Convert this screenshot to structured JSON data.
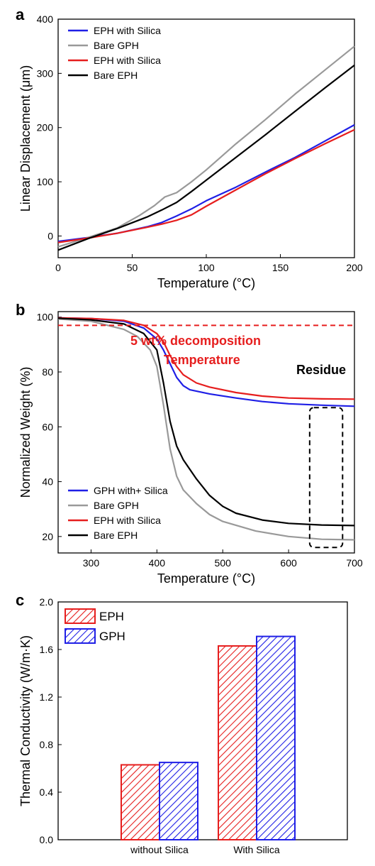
{
  "chart_data": [
    {
      "panel_label": "a",
      "type": "line",
      "xlabel": "Temperature (°C)",
      "ylabel": "Linear Displacement (μm)",
      "xlim": [
        0,
        200
      ],
      "ylim": [
        -40,
        400
      ],
      "xticks": [
        0,
        50,
        100,
        150,
        200
      ],
      "yticks": [
        0,
        100,
        200,
        300,
        400
      ],
      "legend_position": "top-left",
      "series": [
        {
          "name": "EPH with Silica",
          "color": "#1f1fe6",
          "points": [
            [
              0,
              -10
            ],
            [
              20,
              -3
            ],
            [
              40,
              5
            ],
            [
              60,
              17
            ],
            [
              70,
              25
            ],
            [
              80,
              37
            ],
            [
              90,
              50
            ],
            [
              100,
              65
            ],
            [
              120,
              90
            ],
            [
              140,
              118
            ],
            [
              160,
              145
            ],
            [
              180,
              175
            ],
            [
              200,
              205
            ]
          ]
        },
        {
          "name": "Bare GPH",
          "color": "#999999",
          "points": [
            [
              0,
              -20
            ],
            [
              20,
              -3
            ],
            [
              40,
              15
            ],
            [
              55,
              38
            ],
            [
              65,
              56
            ],
            [
              72,
              72
            ],
            [
              80,
              80
            ],
            [
              90,
              100
            ],
            [
              100,
              122
            ],
            [
              120,
              170
            ],
            [
              140,
              215
            ],
            [
              160,
              262
            ],
            [
              180,
              306
            ],
            [
              200,
              350
            ]
          ]
        },
        {
          "name": "EPH with Silica",
          "color": "#e61e1e",
          "points": [
            [
              0,
              -12
            ],
            [
              20,
              -4
            ],
            [
              40,
              5
            ],
            [
              60,
              16
            ],
            [
              70,
              22
            ],
            [
              80,
              29
            ],
            [
              90,
              39
            ],
            [
              100,
              55
            ],
            [
              120,
              85
            ],
            [
              140,
              115
            ],
            [
              160,
              143
            ],
            [
              180,
              170
            ],
            [
              200,
              196
            ]
          ]
        },
        {
          "name": "Bare EPH",
          "color": "#000000",
          "points": [
            [
              0,
              -26
            ],
            [
              20,
              -5
            ],
            [
              40,
              14
            ],
            [
              60,
              35
            ],
            [
              70,
              48
            ],
            [
              80,
              62
            ],
            [
              90,
              82
            ],
            [
              100,
              103
            ],
            [
              120,
              145
            ],
            [
              140,
              187
            ],
            [
              160,
              230
            ],
            [
              180,
              273
            ],
            [
              200,
              315
            ]
          ]
        }
      ]
    },
    {
      "panel_label": "b",
      "type": "line",
      "xlabel": "Temperature (°C)",
      "ylabel": "Normalized Weight (%)",
      "xlim": [
        250,
        700
      ],
      "ylim": [
        14,
        102
      ],
      "xticks": [
        300,
        400,
        500,
        600,
        700
      ],
      "yticks": [
        20,
        40,
        60,
        80,
        100
      ],
      "legend_position": "bottom-left",
      "annotations": [
        {
          "text": "5 wt% decomposition",
          "color": "#e61e1e"
        },
        {
          "text": "Temperature",
          "color": "#e61e1e"
        },
        {
          "text": "Residue",
          "color": "#000000"
        }
      ],
      "reference_line": {
        "y": 97,
        "color": "#e61e1e",
        "style": "dashed"
      },
      "residue_box": {
        "x": [
          632,
          682
        ],
        "y": [
          16,
          67
        ]
      },
      "series": [
        {
          "name": "GPH with+ Silica",
          "color": "#1f1fe6",
          "points": [
            [
              250,
              99.7
            ],
            [
              300,
              99.5
            ],
            [
              350,
              98.5
            ],
            [
              380,
              96
            ],
            [
              400,
              92
            ],
            [
              410,
              88
            ],
            [
              420,
              83
            ],
            [
              430,
              78
            ],
            [
              440,
              75
            ],
            [
              450,
              73.5
            ],
            [
              480,
              72
            ],
            [
              520,
              70.5
            ],
            [
              560,
              69.2
            ],
            [
              600,
              68.4
            ],
            [
              650,
              67.9
            ],
            [
              700,
              67.5
            ]
          ]
        },
        {
          "name": "Bare GPH",
          "color": "#999999",
          "points": [
            [
              250,
              99.3
            ],
            [
              300,
              98.5
            ],
            [
              350,
              95.5
            ],
            [
              370,
              93
            ],
            [
              390,
              88
            ],
            [
              400,
              82
            ],
            [
              410,
              68
            ],
            [
              420,
              52
            ],
            [
              430,
              42
            ],
            [
              440,
              37
            ],
            [
              460,
              32
            ],
            [
              480,
              28
            ],
            [
              500,
              25.5
            ],
            [
              550,
              22
            ],
            [
              600,
              20
            ],
            [
              650,
              19
            ],
            [
              700,
              18.8
            ]
          ]
        },
        {
          "name": "EPH with Silica",
          "color": "#e61e1e",
          "points": [
            [
              250,
              99.7
            ],
            [
              300,
              99.5
            ],
            [
              350,
              98.8
            ],
            [
              380,
              97
            ],
            [
              400,
              94
            ],
            [
              410,
              91
            ],
            [
              420,
              86
            ],
            [
              430,
              82
            ],
            [
              440,
              79
            ],
            [
              460,
              76
            ],
            [
              480,
              74.5
            ],
            [
              520,
              72.5
            ],
            [
              560,
              71.2
            ],
            [
              600,
              70.5
            ],
            [
              650,
              70.2
            ],
            [
              700,
              70.1
            ]
          ]
        },
        {
          "name": "Bare EPH",
          "color": "#000000",
          "points": [
            [
              250,
              99.6
            ],
            [
              300,
              99
            ],
            [
              350,
              97.5
            ],
            [
              380,
              94
            ],
            [
              400,
              88
            ],
            [
              410,
              76
            ],
            [
              420,
              62
            ],
            [
              430,
              53
            ],
            [
              440,
              48
            ],
            [
              460,
              41
            ],
            [
              480,
              35
            ],
            [
              500,
              31
            ],
            [
              520,
              28.5
            ],
            [
              560,
              26
            ],
            [
              600,
              24.8
            ],
            [
              650,
              24.2
            ],
            [
              700,
              24
            ]
          ]
        }
      ]
    },
    {
      "panel_label": "c",
      "type": "bar",
      "ylabel": "Thermal Conductivity (W/m·K)",
      "categories": [
        "without Silica",
        "With Silica"
      ],
      "ylim": [
        0,
        2.0
      ],
      "yticks": [
        "0.0",
        "0.4",
        "0.8",
        "1.2",
        "1.6",
        "2.0"
      ],
      "legend_position": "top-left",
      "series": [
        {
          "name": "EPH",
          "color": "#e61e1e",
          "values": [
            0.63,
            1.63
          ]
        },
        {
          "name": "GPH",
          "color": "#1f1fe6",
          "values": [
            0.65,
            1.71
          ]
        }
      ]
    }
  ]
}
